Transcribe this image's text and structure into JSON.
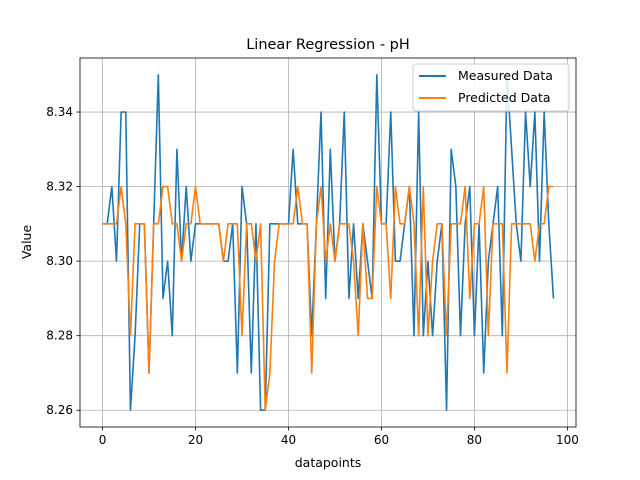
{
  "chart_data": {
    "type": "line",
    "title": "Linear Regression - pH",
    "xlabel": "datapoints",
    "ylabel": "Value",
    "xlim": [
      -4.85,
      101.85
    ],
    "ylim": [
      8.2555,
      8.3545
    ],
    "xticks": [
      0,
      20,
      40,
      60,
      80,
      100
    ],
    "yticks": [
      8.26,
      8.28,
      8.3,
      8.32,
      8.34
    ],
    "grid": true,
    "legend_position": "top-right",
    "series": [
      {
        "name": "Measured Data",
        "color": "#1f77b4",
        "values": [
          8.31,
          8.31,
          8.32,
          8.3,
          8.34,
          8.34,
          8.26,
          8.28,
          8.31,
          8.31,
          8.27,
          8.31,
          8.35,
          8.29,
          8.3,
          8.28,
          8.33,
          8.3,
          8.32,
          8.3,
          8.31,
          8.31,
          8.31,
          8.31,
          8.31,
          8.31,
          8.3,
          8.3,
          8.31,
          8.27,
          8.32,
          8.31,
          8.27,
          8.31,
          8.26,
          8.26,
          8.31,
          8.31,
          8.31,
          8.31,
          8.31,
          8.33,
          8.31,
          8.31,
          8.31,
          8.28,
          8.31,
          8.34,
          8.29,
          8.33,
          8.3,
          8.31,
          8.34,
          8.29,
          8.31,
          8.29,
          8.31,
          8.3,
          8.29,
          8.35,
          8.31,
          8.31,
          8.34,
          8.3,
          8.3,
          8.31,
          8.32,
          8.28,
          8.34,
          8.28,
          8.3,
          8.28,
          8.3,
          8.31,
          8.26,
          8.33,
          8.32,
          8.28,
          8.31,
          8.32,
          8.28,
          8.31,
          8.27,
          8.3,
          8.31,
          8.32,
          8.28,
          8.35,
          8.33,
          8.31,
          8.3,
          8.34,
          8.32,
          8.34,
          8.3,
          8.34,
          8.31,
          8.29
        ]
      },
      {
        "name": "Predicted Data",
        "color": "#ff7f0e",
        "values": [
          8.31,
          8.31,
          8.31,
          8.31,
          8.32,
          8.31,
          8.28,
          8.31,
          8.31,
          8.31,
          8.27,
          8.31,
          8.31,
          8.32,
          8.32,
          8.31,
          8.31,
          8.3,
          8.31,
          8.31,
          8.32,
          8.31,
          8.31,
          8.31,
          8.31,
          8.31,
          8.3,
          8.31,
          8.31,
          8.31,
          8.28,
          8.31,
          8.31,
          8.3,
          8.31,
          8.26,
          8.27,
          8.3,
          8.31,
          8.31,
          8.31,
          8.31,
          8.32,
          8.31,
          8.31,
          8.27,
          8.31,
          8.32,
          8.3,
          8.31,
          8.3,
          8.31,
          8.31,
          8.31,
          8.3,
          8.28,
          8.31,
          8.29,
          8.29,
          8.32,
          8.31,
          8.31,
          8.29,
          8.32,
          8.31,
          8.31,
          8.32,
          8.31,
          8.28,
          8.32,
          8.28,
          8.3,
          8.31,
          8.31,
          8.28,
          8.31,
          8.31,
          8.31,
          8.32,
          8.29,
          8.31,
          8.31,
          8.32,
          8.28,
          8.31,
          8.31,
          8.31,
          8.27,
          8.31,
          8.31,
          8.31,
          8.31,
          8.31,
          8.3,
          8.31,
          8.31,
          8.32,
          8.32
        ]
      }
    ]
  }
}
